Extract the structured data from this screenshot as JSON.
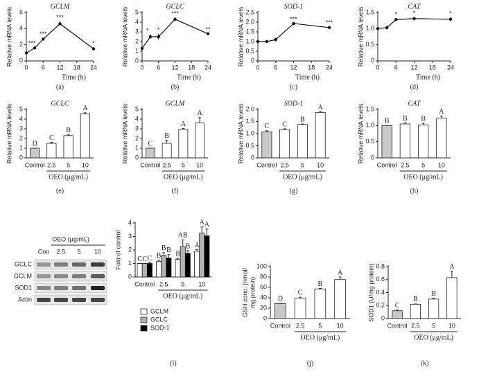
{
  "chart_data": [
    {
      "type": "line",
      "title": "GCLM",
      "panel_label": "(a)",
      "xlabel": "Time (h)",
      "ylabel": "Relative mRNA levels",
      "x": [
        0,
        3,
        6,
        12,
        24
      ],
      "values": [
        1,
        1.6,
        2.7,
        4.6,
        1.5
      ],
      "errors": [
        0.05,
        0.1,
        0.15,
        0.3,
        0.2
      ],
      "significance": [
        null,
        "***",
        "***",
        "***",
        "*"
      ],
      "xlim": [
        0,
        24
      ],
      "xticks": [
        0,
        6,
        12,
        18,
        24
      ],
      "ylim": [
        0,
        6
      ],
      "yticks": [
        0,
        2,
        4,
        6
      ],
      "color": "#111111"
    },
    {
      "type": "line",
      "title": "GCLC",
      "panel_label": "(b)",
      "xlabel": "Time (h)",
      "ylabel": "Relative mRNA levels",
      "x": [
        0,
        3,
        6,
        12,
        24
      ],
      "values": [
        1.3,
        2.5,
        2.5,
        4.3,
        2.8
      ],
      "errors": [
        0.1,
        0.25,
        0.3,
        0.2,
        0.05
      ],
      "significance": [
        null,
        "*",
        "*",
        "***",
        "**"
      ],
      "xlim": [
        0,
        24
      ],
      "xticks": [
        0,
        6,
        12,
        18,
        24
      ],
      "ylim": [
        0,
        5
      ],
      "yticks": [
        0,
        1,
        2,
        3,
        4,
        5
      ],
      "color": "#111111"
    },
    {
      "type": "line",
      "title": "SOD-1",
      "panel_label": "(c)",
      "xlabel": "Time (h)",
      "ylabel": "Relative mRNA levels",
      "x": [
        0,
        3,
        6,
        12,
        24
      ],
      "values": [
        1.0,
        1.0,
        1.1,
        1.93,
        1.72
      ],
      "errors": [
        0.03,
        0.03,
        0.1,
        0.03,
        0.06
      ],
      "significance": [
        null,
        null,
        null,
        "***",
        "***"
      ],
      "xlim": [
        0,
        24
      ],
      "xticks": [
        0,
        6,
        12,
        18,
        24
      ],
      "ylim": [
        0,
        2.5
      ],
      "yticks": [
        0,
        0.5,
        {
          "value": 1,
          "label": "1.0"
        },
        1.5,
        {
          "value": 2,
          "label": "2.0"
        },
        2.5
      ],
      "color": "#111111"
    },
    {
      "type": "line",
      "title": "CAT",
      "panel_label": "(d)",
      "xlabel": "Time (h)",
      "ylabel": "Relative mRNA levels",
      "x": [
        0,
        3,
        6,
        12,
        24
      ],
      "values": [
        1.0,
        1.03,
        1.28,
        1.31,
        1.29
      ],
      "errors": [
        0.03,
        0.06,
        0.05,
        0.05,
        0.06
      ],
      "significance": [
        null,
        null,
        "*",
        "*",
        "*"
      ],
      "xlim": [
        0,
        24
      ],
      "xticks": [
        0,
        6,
        12,
        18,
        24
      ],
      "ylim": [
        0,
        1.5
      ],
      "yticks": [
        0,
        0.5,
        {
          "value": 1,
          "label": "1.0"
        },
        1.5
      ],
      "color": "#111111"
    },
    {
      "type": "bar",
      "title": "GCLC",
      "panel_label": "(e)",
      "xlabel": "OEO (μg/mL)",
      "ylabel": "Relative mRNA levels",
      "categories": [
        "Control",
        "2.5",
        "5",
        "10"
      ],
      "values": [
        1,
        1.5,
        2.3,
        4.55
      ],
      "errors": [
        0,
        0.1,
        0.08,
        0.1
      ],
      "letters": [
        "D",
        "C",
        "B",
        "A"
      ],
      "colors": [
        "#c8c8c8",
        "#ffffff",
        "#ffffff",
        "#ffffff"
      ],
      "ylim": [
        0,
        5
      ],
      "yticks": [
        0,
        1,
        2,
        3,
        4,
        5
      ]
    },
    {
      "type": "bar",
      "title": "GCLM",
      "panel_label": "(f)",
      "xlabel": "OEO (μg/mL)",
      "ylabel": "Relative mRNA levels",
      "categories": [
        "Control",
        "2.5",
        "5",
        "10"
      ],
      "values": [
        1,
        1.5,
        2.95,
        3.6
      ],
      "errors": [
        0,
        0.3,
        0.08,
        0.55
      ],
      "letters": [
        "C",
        "B",
        "A",
        "A"
      ],
      "colors": [
        "#c8c8c8",
        "#ffffff",
        "#ffffff",
        "#ffffff"
      ],
      "ylim": [
        0,
        5
      ],
      "yticks": [
        0,
        1,
        2,
        3,
        4,
        5
      ]
    },
    {
      "type": "bar",
      "title": "SOD-1",
      "panel_label": "(g)",
      "xlabel": "OEO (μg/mL)",
      "ylabel": "Relative mRNA levels",
      "categories": [
        "Control",
        "2.5",
        "5",
        "10"
      ],
      "values": [
        1.07,
        1.17,
        1.38,
        1.87
      ],
      "errors": [
        0.05,
        0.03,
        0.02,
        0.03
      ],
      "letters": [
        "C",
        "C",
        "B",
        "A"
      ],
      "colors": [
        "#c8c8c8",
        "#ffffff",
        "#ffffff",
        "#ffffff"
      ],
      "ylim": [
        0,
        2
      ],
      "yticks": [
        0,
        0.5,
        {
          "value": 1,
          "label": "1.0"
        },
        1.5,
        {
          "value": 2,
          "label": "2.0"
        }
      ]
    },
    {
      "type": "bar",
      "title": "CAT",
      "panel_label": "(h)",
      "xlabel": "OEO (μg/mL)",
      "ylabel": "Relative mRNA levels",
      "categories": [
        "Control",
        "2.5",
        "5",
        "10"
      ],
      "values": [
        1.0,
        1.05,
        1.02,
        1.23
      ],
      "errors": [
        0,
        0.03,
        0.05,
        0.06
      ],
      "letters": [
        "B",
        "B",
        "B",
        "A"
      ],
      "colors": [
        "#c8c8c8",
        "#ffffff",
        "#ffffff",
        "#ffffff"
      ],
      "ylim": [
        0,
        1.5
      ],
      "yticks": [
        0,
        0.5,
        {
          "value": 1,
          "label": "1.0"
        },
        1.5
      ]
    },
    {
      "type": "bar",
      "panel_label": "(i)",
      "xlabel": "OEO (μg/mL)",
      "ylabel": "Fold of control",
      "categories": [
        "Control",
        "2.5",
        "5",
        "10"
      ],
      "ylim": [
        0,
        4
      ],
      "yticks": [
        0,
        1,
        2,
        3,
        4
      ],
      "series": [
        {
          "name": "GCLM",
          "color": "#ffffff",
          "values": [
            1,
            1.15,
            1.3,
            1.9
          ],
          "errors": [
            0,
            0.1,
            0.08,
            0.12
          ],
          "letters": [
            "C",
            "B",
            "B",
            "A"
          ]
        },
        {
          "name": "GCLC",
          "color": "#b4b4b4",
          "values": [
            1,
            1.6,
            2.25,
            3.25
          ],
          "errors": [
            0,
            0.2,
            0.5,
            0.45
          ],
          "letters": [
            "C",
            "B",
            "AB",
            "A"
          ]
        },
        {
          "name": "SOD-1",
          "color": "#000000",
          "values": [
            1,
            1.4,
            1.75,
            3.05
          ],
          "errors": [
            0.05,
            0.25,
            0.2,
            0.5
          ],
          "letters": [
            "C",
            "B",
            "B",
            "A"
          ]
        }
      ]
    },
    {
      "type": "bar",
      "panel_label": "(j)",
      "xlabel": "OEO (μg/mL)",
      "ylabel": [
        "GSH conc. (nmol/",
        "mg protein)"
      ],
      "categories": [
        "Control",
        "2.5",
        "5",
        "10"
      ],
      "values": [
        29,
        39,
        57,
        75
      ],
      "errors": [
        0,
        2,
        1,
        5
      ],
      "letters": [
        "D",
        "C",
        "B",
        "A"
      ],
      "colors": [
        "#c8c8c8",
        "#ffffff",
        "#ffffff",
        "#ffffff"
      ],
      "ylim": [
        0,
        100
      ],
      "yticks": [
        0,
        20,
        40,
        60,
        80,
        100
      ]
    },
    {
      "type": "bar",
      "panel_label": "(k)",
      "xlabel": "OEO (μg/mL)",
      "ylabel": "SOD1 (U/mg protein)",
      "categories": [
        "Control",
        "2.5",
        "5",
        "10"
      ],
      "values": [
        0.12,
        0.22,
        0.3,
        0.63
      ],
      "errors": [
        0.01,
        0.005,
        0.01,
        0.1
      ],
      "letters": [
        "C",
        "B",
        "B",
        "A"
      ],
      "colors": [
        "#c8c8c8",
        "#ffffff",
        "#ffffff",
        "#ffffff"
      ],
      "ylim": [
        0,
        0.8
      ],
      "yticks": [
        0,
        0.2,
        0.4,
        0.6,
        0.8
      ]
    }
  ],
  "blot": {
    "treatment": "OEO (μg/mL)",
    "lanes": [
      "Con",
      "2.5",
      "5",
      "10"
    ],
    "rows": [
      "GCLC",
      "GCLM",
      "SOD1",
      "Actin"
    ]
  }
}
